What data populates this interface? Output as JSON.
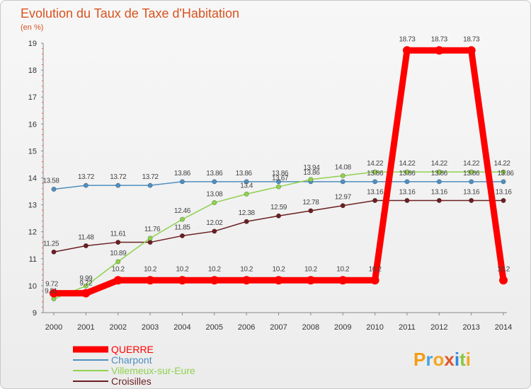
{
  "chart_data": {
    "type": "line",
    "title": "Evolution du Taux de Taxe d'Habitation",
    "subtitle": "(en %)",
    "x": [
      "2000",
      "2001",
      "2002",
      "2003",
      "2004",
      "2005",
      "2006",
      "2007",
      "2008",
      "2009",
      "2010",
      "2011",
      "2012",
      "2013",
      "2014"
    ],
    "ylim": [
      9,
      19
    ],
    "yticks": [
      9,
      10,
      11,
      12,
      13,
      14,
      15,
      16,
      17,
      18,
      19
    ],
    "grid": false,
    "legend_position": "bottom-left",
    "series": [
      {
        "name": "Croisilles",
        "color": "#6b1f23",
        "values": [
          11.25,
          11.48,
          11.61,
          11.61,
          11.85,
          12.02,
          12.38,
          12.59,
          12.78,
          12.97,
          13.16,
          13.16,
          13.16,
          13.16,
          13.16
        ],
        "labels": [
          "11.25",
          "11.48",
          "11.61",
          "",
          "11.85",
          "12.02",
          "12.38",
          "12.59",
          "12.78",
          "12.97",
          "13.16",
          "13.16",
          "13.16",
          "13.16",
          "13.16"
        ]
      },
      {
        "name": "Charpont",
        "color": "#4f8fc0",
        "values": [
          13.58,
          13.72,
          13.72,
          13.72,
          13.86,
          13.86,
          13.86,
          13.86,
          13.86,
          13.86,
          13.86,
          13.86,
          13.86,
          13.86,
          13.86
        ],
        "labels": [
          "13.58",
          "13.72",
          "13.72",
          "13.72",
          "13.86",
          "13.86",
          "13.86",
          "13.86",
          "13.86",
          "",
          "13.86",
          "13.86",
          "13.86",
          "13.86",
          "13.86"
        ]
      },
      {
        "name": "Villemeux-sur-Eure",
        "color": "#8fd14f",
        "values": [
          9.51,
          9.99,
          10.89,
          11.76,
          12.46,
          13.08,
          13.4,
          13.67,
          13.94,
          14.08,
          14.22,
          14.22,
          14.22,
          14.22,
          14.22
        ],
        "labels": [
          "9.51",
          "9.99",
          "10.89",
          "11.76",
          "12.46",
          "13.08",
          "13.4",
          "13.67",
          "13.94",
          "14.08",
          "14.22",
          "14.22",
          "14.22",
          "14.22",
          "14.22"
        ]
      },
      {
        "name": "QUERRE",
        "color": "#ff0000",
        "values": [
          9.72,
          9.72,
          10.2,
          10.2,
          10.2,
          10.2,
          10.2,
          10.2,
          10.2,
          10.2,
          10.2,
          18.73,
          18.73,
          18.73,
          10.2
        ],
        "labels": [
          "9.72",
          "9.72",
          "10.2",
          "10.2",
          "10.2",
          "10.2",
          "10.2",
          "10.2",
          "10.2",
          "10.2",
          "10.2",
          "18.73",
          "18.73",
          "18.73",
          "10.2"
        ]
      }
    ],
    "legend_order": [
      "QUERRE",
      "Charpont",
      "Villemeux-sur-Eure",
      "Croisilles"
    ]
  },
  "logo": {
    "letters": [
      "P",
      "r",
      "o",
      "x",
      "i",
      "t",
      "i"
    ],
    "colors": [
      "#f39c12",
      "#4aa3df",
      "#f5a623",
      "#e0562d",
      "#2e86de",
      "#8cc63f",
      "#f5a623"
    ]
  }
}
